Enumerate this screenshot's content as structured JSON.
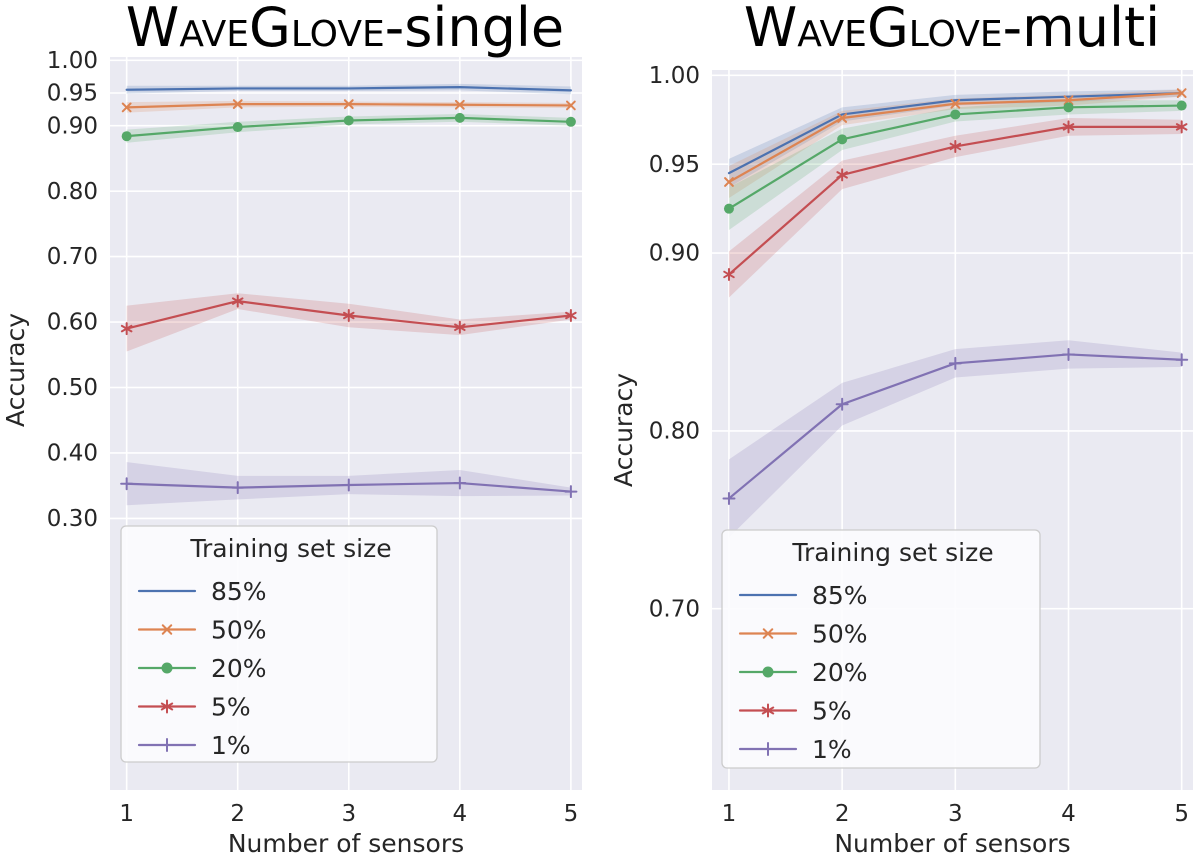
{
  "style": {
    "plot_bg": "#eaeaf2",
    "grid_color": "#ffffff",
    "text_color": "#262626",
    "title_color": "#000000",
    "legend_bg": "#fcfcfe",
    "legend_border": "#cccccc"
  },
  "chart_data": [
    {
      "type": "line",
      "title_plain": "WaveGlove-single",
      "title_segments": [
        {
          "t": "W",
          "s": "big"
        },
        {
          "t": "AVE",
          "s": "small"
        },
        {
          "t": "G",
          "s": "big"
        },
        {
          "t": "LOVE",
          "s": "small"
        },
        {
          "t": "-single",
          "s": "big"
        }
      ],
      "xlabel": "Number of sensors",
      "ylabel": "Accuracy",
      "x": [
        1,
        2,
        3,
        4,
        5
      ],
      "xlim": [
        0.85,
        5.1
      ],
      "ylim": [
        -0.115,
        1.005
      ],
      "xticks": [
        1,
        2,
        3,
        4,
        5
      ],
      "xtick_labels": [
        "1",
        "2",
        "3",
        "4",
        "5"
      ],
      "yticks": [
        1.0,
        0.95,
        0.9,
        0.8,
        0.7,
        0.6,
        0.5,
        0.4,
        0.3
      ],
      "ytick_labels": [
        "1.00",
        "0.95",
        "0.90",
        "0.80",
        "0.70",
        "0.60",
        "0.50",
        "0.40",
        "0.30"
      ],
      "grid": true,
      "legend": {
        "title": "Training set size",
        "position": "lower left"
      },
      "series": [
        {
          "name": "85%",
          "color": "#4c72b0",
          "marker": "none",
          "values": [
            0.955,
            0.957,
            0.957,
            0.959,
            0.954
          ],
          "ci": [
            0.006,
            0.004,
            0.004,
            0.005,
            0.006
          ]
        },
        {
          "name": "50%",
          "color": "#dd8452",
          "marker": "x",
          "values": [
            0.928,
            0.933,
            0.933,
            0.932,
            0.931
          ],
          "ci": [
            0.008,
            0.005,
            0.004,
            0.004,
            0.004
          ]
        },
        {
          "name": "20%",
          "color": "#55a868",
          "marker": "circle",
          "values": [
            0.884,
            0.898,
            0.908,
            0.912,
            0.906
          ],
          "ci": [
            0.01,
            0.008,
            0.006,
            0.006,
            0.006
          ]
        },
        {
          "name": "5%",
          "color": "#c44e52",
          "marker": "star",
          "values": [
            0.59,
            0.632,
            0.61,
            0.592,
            0.61
          ],
          "ci": [
            0.035,
            0.012,
            0.018,
            0.012,
            0.006
          ]
        },
        {
          "name": "1%",
          "color": "#8172b3",
          "marker": "plus",
          "values": [
            0.353,
            0.347,
            0.351,
            0.354,
            0.341
          ],
          "ci": [
            0.033,
            0.018,
            0.014,
            0.02,
            0.006
          ]
        }
      ]
    },
    {
      "type": "line",
      "title_plain": "WaveGlove-multi",
      "title_segments": [
        {
          "t": "W",
          "s": "big"
        },
        {
          "t": "AVE",
          "s": "small"
        },
        {
          "t": "G",
          "s": "big"
        },
        {
          "t": "LOVE",
          "s": "small"
        },
        {
          "t": "-multi",
          "s": "big"
        }
      ],
      "xlabel": "Number of sensors",
      "ylabel": "Accuracy",
      "x": [
        1,
        2,
        3,
        4,
        5
      ],
      "xlim": [
        0.85,
        5.1
      ],
      "ylim": [
        0.598,
        1.003
      ],
      "xticks": [
        1,
        2,
        3,
        4,
        5
      ],
      "xtick_labels": [
        "1",
        "2",
        "3",
        "4",
        "5"
      ],
      "yticks": [
        1.0,
        0.95,
        0.9,
        0.8,
        0.7
      ],
      "ytick_labels": [
        "1.00",
        "0.95",
        "0.90",
        "0.80",
        "0.70"
      ],
      "grid": true,
      "legend": {
        "title": "Training set size",
        "position": "lower left"
      },
      "series": [
        {
          "name": "85%",
          "color": "#4c72b0",
          "marker": "none",
          "values": [
            0.945,
            0.978,
            0.986,
            0.988,
            0.99
          ],
          "ci": [
            0.008,
            0.004,
            0.003,
            0.003,
            0.002
          ]
        },
        {
          "name": "50%",
          "color": "#dd8452",
          "marker": "x",
          "values": [
            0.94,
            0.976,
            0.984,
            0.986,
            0.99
          ],
          "ci": [
            0.009,
            0.004,
            0.003,
            0.003,
            0.002
          ]
        },
        {
          "name": "20%",
          "color": "#55a868",
          "marker": "circle",
          "values": [
            0.925,
            0.964,
            0.978,
            0.982,
            0.983
          ],
          "ci": [
            0.012,
            0.006,
            0.004,
            0.004,
            0.003
          ]
        },
        {
          "name": "5%",
          "color": "#c44e52",
          "marker": "star",
          "values": [
            0.888,
            0.944,
            0.96,
            0.971,
            0.971
          ],
          "ci": [
            0.013,
            0.008,
            0.006,
            0.005,
            0.004
          ]
        },
        {
          "name": "1%",
          "color": "#8172b3",
          "marker": "plus",
          "values": [
            0.762,
            0.815,
            0.838,
            0.843,
            0.84
          ],
          "ci": [
            0.022,
            0.012,
            0.008,
            0.008,
            0.004
          ]
        }
      ]
    }
  ]
}
